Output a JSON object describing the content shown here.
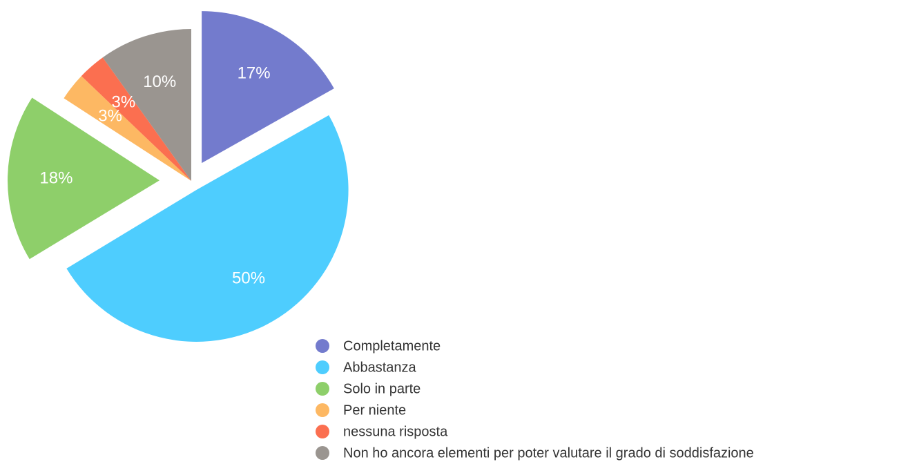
{
  "chart_data": {
    "type": "pie",
    "categories": [
      "Completamente",
      "Abbastanza",
      "Solo in parte",
      "Per niente",
      "nessuna risposta",
      "Non ho ancora elementi per poter valutare il grado di soddisfazione"
    ],
    "values": [
      17,
      50,
      18,
      3,
      3,
      10
    ],
    "value_labels": [
      "17%",
      "50%",
      "18%",
      "3%",
      "3%",
      "10%"
    ],
    "colors": [
      "#737bcd",
      "#4ecdfe",
      "#8ecf6a",
      "#fdb863",
      "#fb6f50",
      "#9a9590"
    ]
  }
}
